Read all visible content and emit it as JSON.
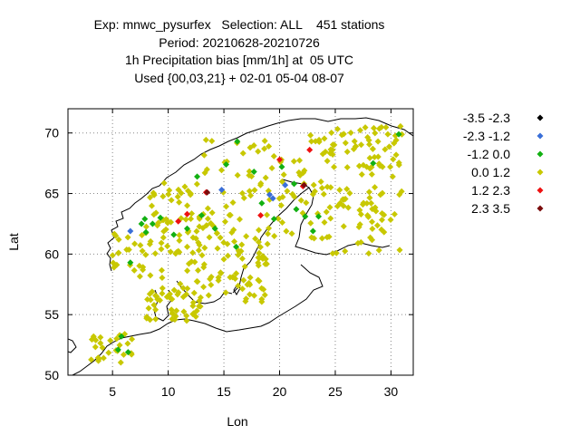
{
  "title_lines": [
    "Exp: mnwc_pysurfex   Selection: ALL    451 stations",
    "Period: 20210628-20210726",
    "1h Precipitation bias [mm/1h] at  05 UTC",
    "Used {00,03,21} + 02-01 05-04 08-07"
  ],
  "chart_data": {
    "type": "scatter",
    "xlabel": "Lon",
    "ylabel": "Lat",
    "xlim": [
      1,
      32
    ],
    "ylim": [
      50,
      72
    ],
    "xticks": [
      5,
      10,
      15,
      20,
      25,
      30
    ],
    "yticks": [
      50,
      55,
      60,
      65,
      70
    ],
    "grid": true,
    "legend_position": "right",
    "legend": [
      {
        "label": "-3.5 -2.3",
        "color": "#000000"
      },
      {
        "label": "-2.3 -1.2",
        "color": "#3a6fd8"
      },
      {
        "label": "-1.2 0.0",
        "color": "#12b012"
      },
      {
        "label": "0.0 1.2",
        "color": "#c8c800"
      },
      {
        "label": "1.2 2.3",
        "color": "#ee1111"
      },
      {
        "label": "2.3 3.5",
        "color": "#7a0c0c"
      }
    ],
    "series": [
      {
        "class": 1,
        "points": [
          [
            6.6,
            61.9
          ],
          [
            14.8,
            65.3
          ],
          [
            19.1,
            64.9
          ],
          [
            19.4,
            64.6
          ],
          [
            20.5,
            65.7
          ]
        ]
      },
      {
        "class": 2,
        "points": [
          [
            16.2,
            69.3
          ],
          [
            15.2,
            67.4
          ],
          [
            17.7,
            66.8
          ],
          [
            20.2,
            67.2
          ],
          [
            21.3,
            65.8
          ],
          [
            22.3,
            63.1
          ],
          [
            21.5,
            63.7
          ],
          [
            18.4,
            64.2
          ],
          [
            19.5,
            62.9
          ],
          [
            12.6,
            66.4
          ],
          [
            9.3,
            63.0
          ],
          [
            8.6,
            62.5
          ],
          [
            7.9,
            62.9
          ],
          [
            7.6,
            62.5
          ],
          [
            8.0,
            61.8
          ],
          [
            10.5,
            61.6
          ],
          [
            11.7,
            62.1
          ],
          [
            16.1,
            60.6
          ],
          [
            14.2,
            62.1
          ],
          [
            23.0,
            61.9
          ],
          [
            23.5,
            63.1
          ],
          [
            28.4,
            67.5
          ],
          [
            30.7,
            69.9
          ],
          [
            5.5,
            52.1
          ],
          [
            6.4,
            51.9
          ],
          [
            5.8,
            53.2
          ],
          [
            6.6,
            59.3
          ],
          [
            13.0,
            63.2
          ]
        ]
      },
      {
        "class": 4,
        "points": [
          [
            10.9,
            62.7
          ],
          [
            11.7,
            63.3
          ],
          [
            13.4,
            65.1
          ],
          [
            22.7,
            68.6
          ],
          [
            20.0,
            67.8
          ],
          [
            18.3,
            63.2
          ],
          [
            22.1,
            65.6
          ]
        ]
      },
      {
        "class": 5,
        "points": [
          [
            13.5,
            65.1
          ],
          [
            22.2,
            65.7
          ]
        ]
      }
    ]
  }
}
